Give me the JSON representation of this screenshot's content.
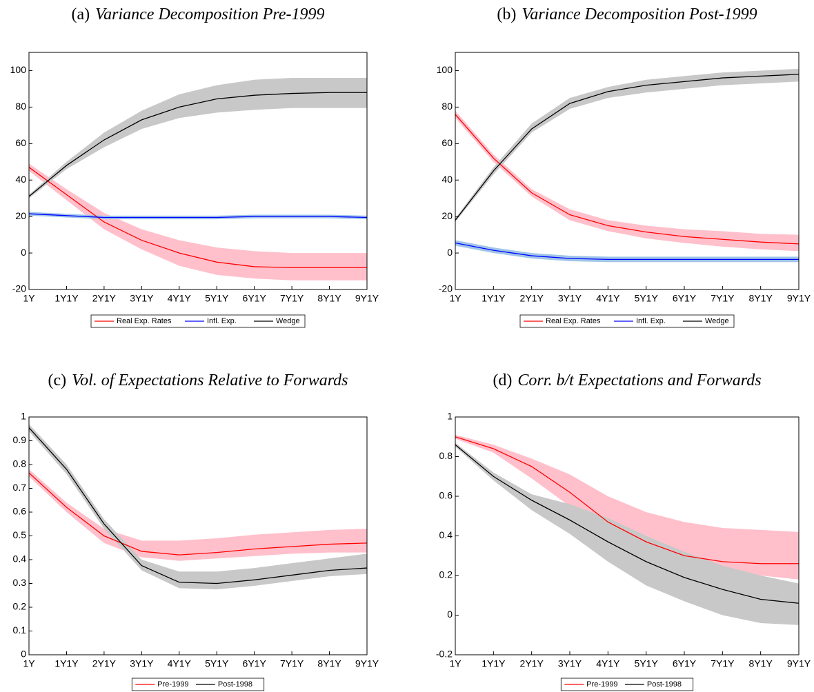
{
  "chart_data": [
    {
      "type": "line",
      "panel": "(a)",
      "title": "Variance Decomposition Pre-1999",
      "categories": [
        "1Y",
        "1Y1Y",
        "2Y1Y",
        "3Y1Y",
        "4Y1Y",
        "5Y1Y",
        "6Y1Y",
        "7Y1Y",
        "8Y1Y",
        "9Y1Y"
      ],
      "ylim": [
        -20,
        110
      ],
      "yticks": [
        -20,
        0,
        20,
        40,
        60,
        80,
        100
      ],
      "series": [
        {
          "name": "Real Exp. Rates",
          "color": "#ff0000",
          "band_color": "#ffc0cb",
          "values": [
            47,
            32,
            17,
            7,
            0,
            -5,
            -7.5,
            -8,
            -8,
            -8
          ],
          "lower": [
            45,
            29,
            13,
            2,
            -7,
            -12,
            -14,
            -15,
            -15,
            -15
          ],
          "upper": [
            49,
            35,
            22,
            13,
            7,
            3,
            1,
            0,
            0,
            0
          ]
        },
        {
          "name": "Infl. Exp.",
          "color": "#0000ff",
          "band_color": "#9fc5e8",
          "values": [
            21.5,
            20.5,
            19.5,
            19.5,
            19.5,
            19.5,
            20,
            20,
            20,
            19.5
          ],
          "lower": [
            20.5,
            19.5,
            18.5,
            18.5,
            18.5,
            18.5,
            19,
            19,
            19,
            18.5
          ],
          "upper": [
            22.5,
            21.5,
            20.5,
            20.5,
            20.5,
            20.5,
            21,
            21,
            21,
            20.5
          ]
        },
        {
          "name": "Wedge",
          "color": "#000000",
          "band_color": "#c8c8c8",
          "values": [
            31,
            48,
            62,
            73,
            80,
            84.5,
            86.5,
            87.5,
            88,
            88
          ],
          "lower": [
            30,
            46,
            58,
            68,
            74,
            77,
            78.5,
            79.5,
            79.5,
            79.5
          ],
          "upper": [
            32,
            50,
            66,
            78,
            87,
            92,
            95,
            96,
            96,
            96
          ]
        }
      ]
    },
    {
      "type": "line",
      "panel": "(b)",
      "title": "Variance Decomposition Post-1999",
      "categories": [
        "1Y",
        "1Y1Y",
        "2Y1Y",
        "3Y1Y",
        "4Y1Y",
        "5Y1Y",
        "6Y1Y",
        "7Y1Y",
        "8Y1Y",
        "9Y1Y"
      ],
      "ylim": [
        -20,
        110
      ],
      "yticks": [
        -20,
        0,
        20,
        40,
        60,
        80,
        100
      ],
      "series": [
        {
          "name": "Real Exp. Rates",
          "color": "#ff0000",
          "band_color": "#ffc0cb",
          "values": [
            76,
            52,
            33,
            21,
            15,
            11.5,
            9,
            7.5,
            6,
            5
          ],
          "lower": [
            74,
            50,
            31,
            18,
            12,
            8,
            5.5,
            3.5,
            2,
            1
          ],
          "upper": [
            78,
            54,
            35,
            24,
            18,
            15,
            13,
            12,
            10.5,
            10
          ]
        },
        {
          "name": "Infl. Exp.",
          "color": "#0000ff",
          "band_color": "#9fc5e8",
          "values": [
            5.5,
            1.5,
            -1.5,
            -3,
            -3.5,
            -3.5,
            -3.5,
            -3.5,
            -3.5,
            -3.5
          ],
          "lower": [
            4,
            0,
            -3,
            -4.5,
            -5,
            -5,
            -5,
            -5,
            -5,
            -5
          ],
          "upper": [
            7,
            3,
            0,
            -1.5,
            -2,
            -2,
            -2,
            -2,
            -2,
            -2
          ]
        },
        {
          "name": "Wedge",
          "color": "#000000",
          "band_color": "#c8c8c8",
          "values": [
            18,
            45,
            68,
            82,
            88.5,
            92,
            94,
            96,
            97,
            98
          ],
          "lower": [
            17,
            43,
            66,
            79,
            85,
            88,
            90,
            92,
            93,
            94
          ],
          "upper": [
            19,
            47,
            71,
            85,
            91,
            95,
            97,
            99,
            100,
            101
          ]
        }
      ]
    },
    {
      "type": "line",
      "panel": "(c)",
      "title": "Vol. of Expectations Relative to Forwards",
      "categories": [
        "1Y",
        "1Y1Y",
        "2Y1Y",
        "3Y1Y",
        "4Y1Y",
        "5Y1Y",
        "6Y1Y",
        "7Y1Y",
        "8Y1Y",
        "9Y1Y"
      ],
      "ylim": [
        0,
        1
      ],
      "yticks": [
        0,
        0.1,
        0.2,
        0.3,
        0.4,
        0.5,
        0.6,
        0.7,
        0.8,
        0.9,
        1
      ],
      "series": [
        {
          "name": "Pre-1999",
          "color": "#ff0000",
          "band_color": "#ffc0cb",
          "values": [
            0.765,
            0.62,
            0.5,
            0.435,
            0.42,
            0.43,
            0.445,
            0.455,
            0.465,
            0.47
          ],
          "lower": [
            0.75,
            0.6,
            0.47,
            0.41,
            0.395,
            0.405,
            0.415,
            0.425,
            0.43,
            0.43
          ],
          "upper": [
            0.78,
            0.64,
            0.53,
            0.48,
            0.48,
            0.49,
            0.505,
            0.515,
            0.525,
            0.53
          ]
        },
        {
          "name": "Post-1998",
          "color": "#000000",
          "band_color": "#c8c8c8",
          "values": [
            0.955,
            0.78,
            0.55,
            0.375,
            0.305,
            0.3,
            0.315,
            0.335,
            0.355,
            0.365
          ],
          "lower": [
            0.94,
            0.76,
            0.53,
            0.355,
            0.28,
            0.275,
            0.29,
            0.31,
            0.33,
            0.34
          ],
          "upper": [
            0.97,
            0.8,
            0.57,
            0.4,
            0.35,
            0.35,
            0.365,
            0.385,
            0.405,
            0.425
          ]
        }
      ]
    },
    {
      "type": "line",
      "panel": "(d)",
      "title": "Corr. b/t Expectations and Forwards",
      "categories": [
        "1Y",
        "1Y1Y",
        "2Y1Y",
        "3Y1Y",
        "4Y1Y",
        "5Y1Y",
        "6Y1Y",
        "7Y1Y",
        "8Y1Y",
        "9Y1Y"
      ],
      "ylim": [
        -0.2,
        1
      ],
      "yticks": [
        -0.2,
        0,
        0.2,
        0.4,
        0.6,
        0.8,
        1
      ],
      "series": [
        {
          "name": "Pre-1999",
          "color": "#ff0000",
          "band_color": "#ffc0cb",
          "values": [
            0.9,
            0.84,
            0.75,
            0.62,
            0.47,
            0.37,
            0.3,
            0.27,
            0.26,
            0.26
          ],
          "lower": [
            0.89,
            0.82,
            0.69,
            0.55,
            0.43,
            0.36,
            0.3,
            0.24,
            0.2,
            0.18
          ],
          "upper": [
            0.91,
            0.86,
            0.79,
            0.71,
            0.6,
            0.52,
            0.47,
            0.44,
            0.43,
            0.42
          ]
        },
        {
          "name": "Post-1998",
          "color": "#000000",
          "band_color": "#c8c8c8",
          "values": [
            0.86,
            0.7,
            0.58,
            0.48,
            0.37,
            0.27,
            0.19,
            0.13,
            0.08,
            0.06
          ],
          "lower": [
            0.85,
            0.68,
            0.53,
            0.41,
            0.27,
            0.15,
            0.07,
            0,
            -0.04,
            -0.05
          ],
          "upper": [
            0.87,
            0.72,
            0.61,
            0.56,
            0.49,
            0.4,
            0.32,
            0.25,
            0.2,
            0.16
          ]
        }
      ]
    }
  ]
}
